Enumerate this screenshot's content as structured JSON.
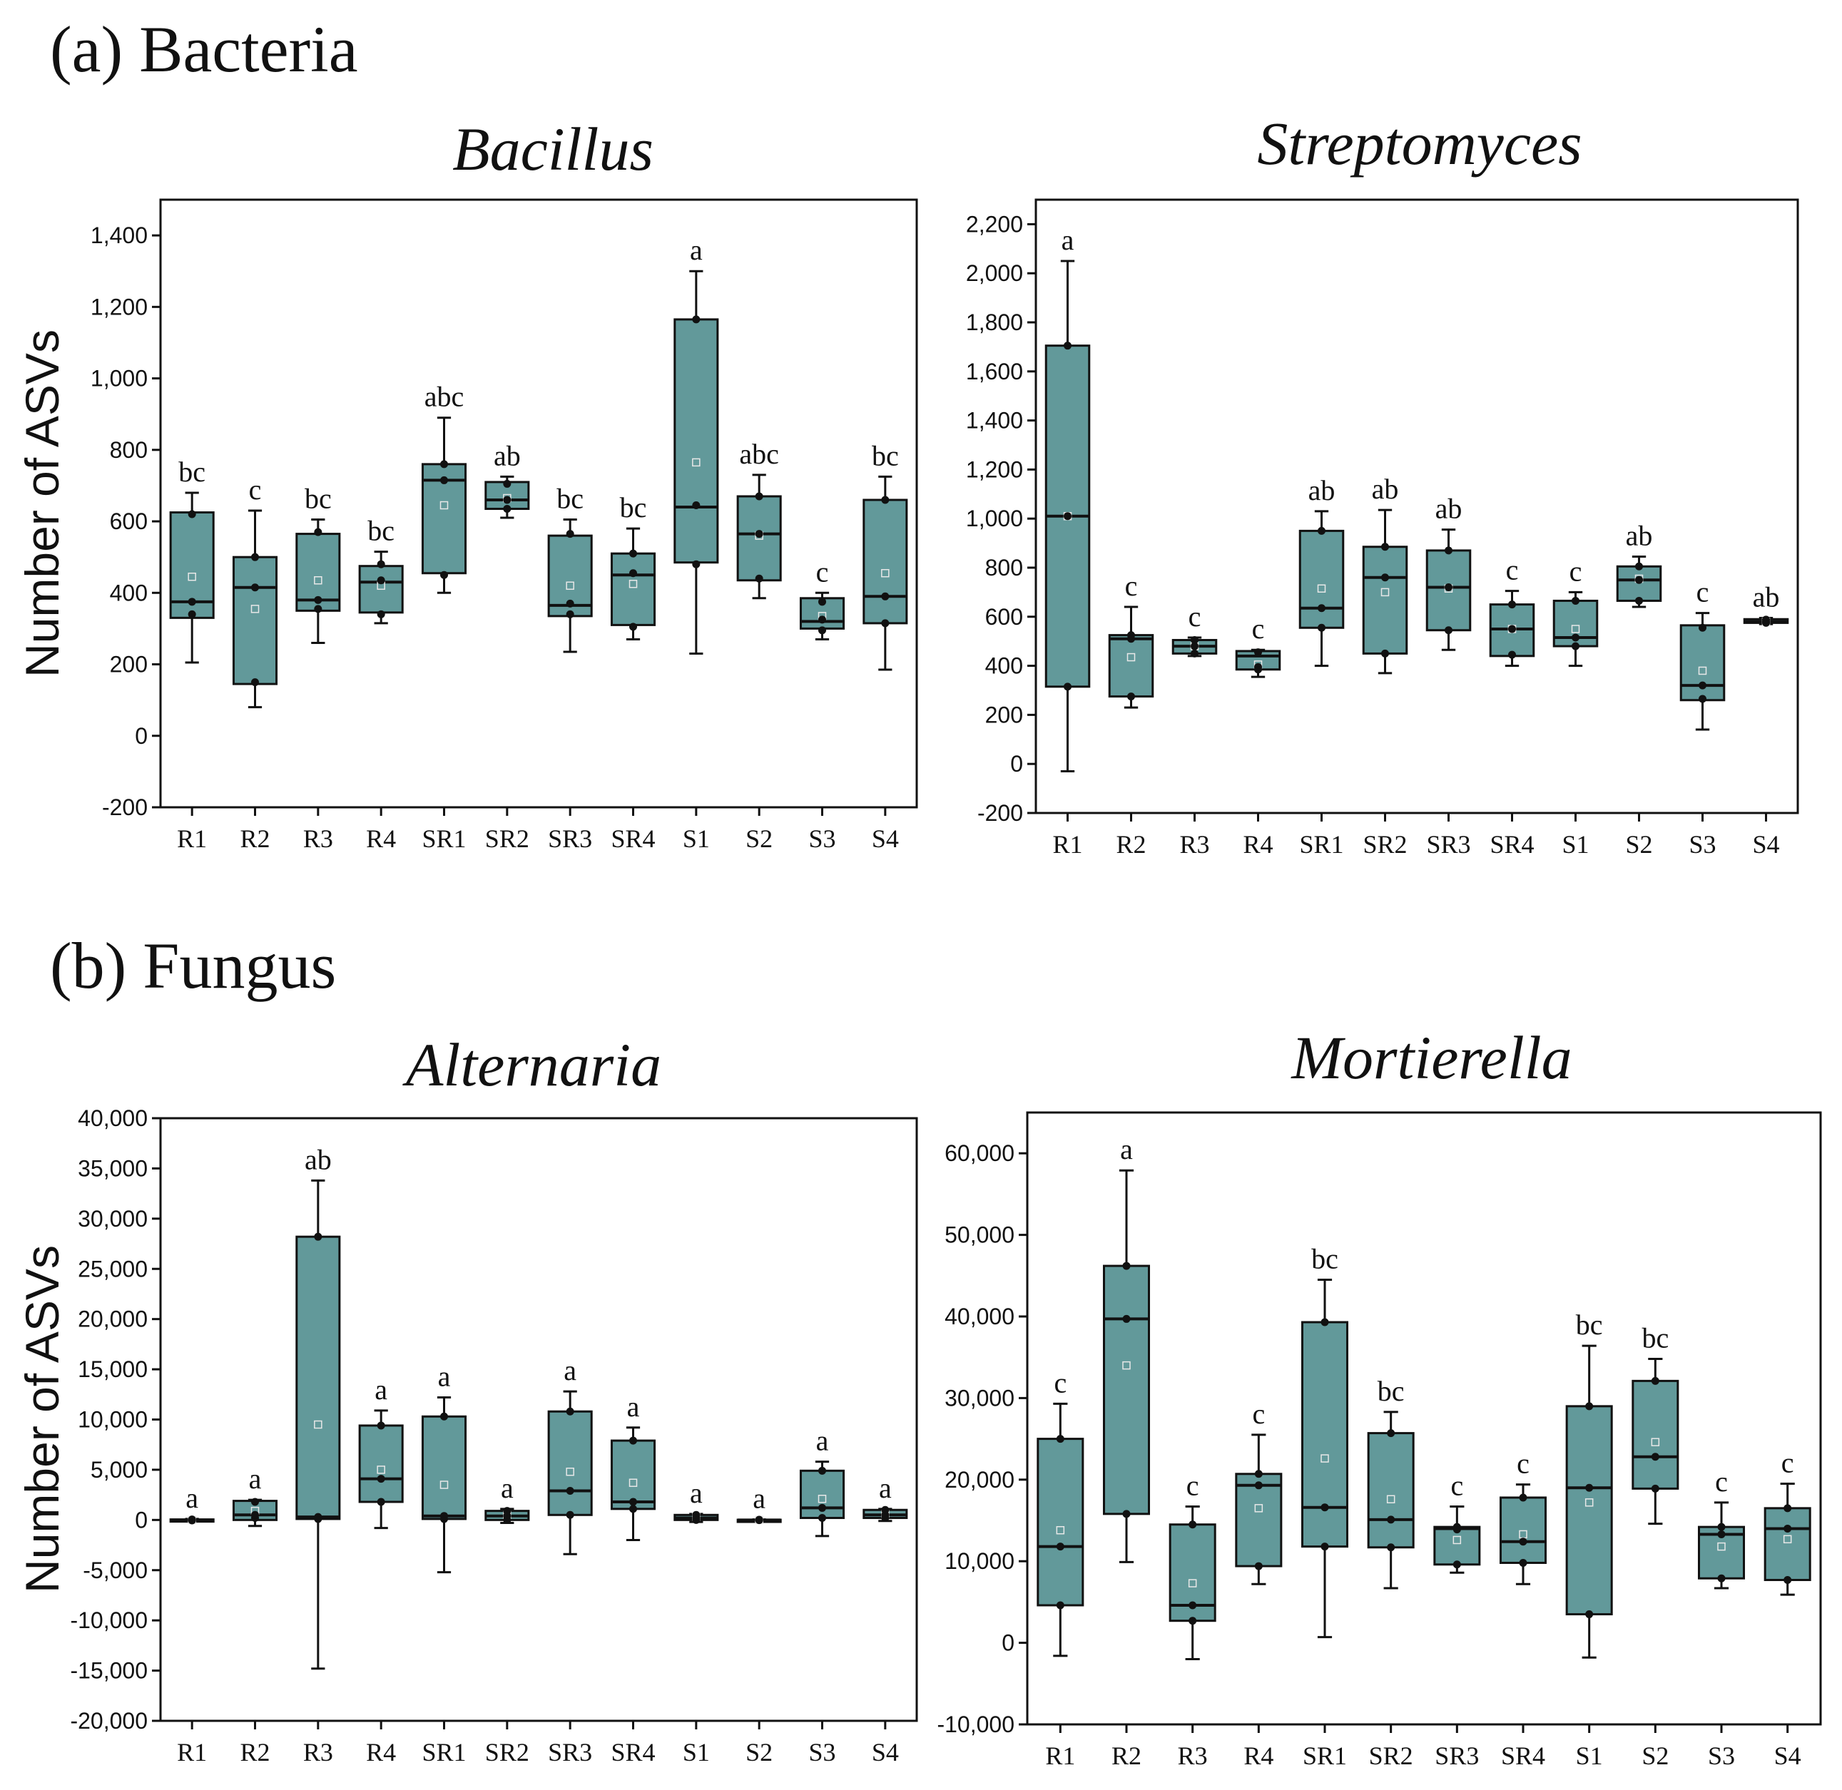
{
  "sections": [
    {
      "label": "(a) Bacteria"
    },
    {
      "label": "(b) Fungus"
    }
  ],
  "chart_data": [
    {
      "type": "box",
      "title": "Bacillus",
      "ylabel": "Number of ASVs",
      "ylim": [
        -200,
        1500
      ],
      "yticks": [
        -200,
        0,
        200,
        400,
        600,
        800,
        1000,
        1200,
        1400
      ],
      "ytick_labels": [
        "-200",
        "0",
        "200",
        "400",
        "600",
        "800",
        "1,000",
        "1,200",
        "1,400"
      ],
      "categories": [
        "R1",
        "R2",
        "R3",
        "R4",
        "SR1",
        "SR2",
        "SR3",
        "SR4",
        "S1",
        "S2",
        "S3",
        "S4"
      ],
      "boxes": [
        {
          "min": 205,
          "q1": 330,
          "median": 375,
          "q3": 625,
          "max": 680,
          "mean": 445,
          "points": [
            340,
            375,
            620
          ],
          "label": "bc"
        },
        {
          "min": 80,
          "q1": 145,
          "median": 415,
          "q3": 500,
          "max": 630,
          "mean": 355,
          "points": [
            150,
            415,
            500
          ],
          "label": "c"
        },
        {
          "min": 260,
          "q1": 350,
          "median": 380,
          "q3": 565,
          "max": 605,
          "mean": 435,
          "points": [
            355,
            380,
            570
          ],
          "label": "bc"
        },
        {
          "min": 315,
          "q1": 345,
          "median": 430,
          "q3": 475,
          "max": 515,
          "mean": 420,
          "points": [
            340,
            435,
            480
          ],
          "label": "bc"
        },
        {
          "min": 400,
          "q1": 455,
          "median": 715,
          "q3": 760,
          "max": 890,
          "mean": 645,
          "points": [
            450,
            715,
            760
          ],
          "label": "abc"
        },
        {
          "min": 610,
          "q1": 635,
          "median": 660,
          "q3": 710,
          "max": 725,
          "mean": 665,
          "points": [
            635,
            660,
            705
          ],
          "label": "ab"
        },
        {
          "min": 235,
          "q1": 335,
          "median": 365,
          "q3": 560,
          "max": 605,
          "mean": 420,
          "points": [
            340,
            370,
            565
          ],
          "label": "bc"
        },
        {
          "min": 270,
          "q1": 310,
          "median": 450,
          "q3": 510,
          "max": 580,
          "mean": 425,
          "points": [
            305,
            455,
            510
          ],
          "label": "bc"
        },
        {
          "min": 230,
          "q1": 485,
          "median": 640,
          "q3": 1165,
          "max": 1300,
          "mean": 765,
          "points": [
            480,
            645,
            1165
          ],
          "label": "a"
        },
        {
          "min": 385,
          "q1": 435,
          "median": 565,
          "q3": 670,
          "max": 730,
          "mean": 560,
          "points": [
            440,
            565,
            670
          ],
          "label": "abc"
        },
        {
          "min": 270,
          "q1": 300,
          "median": 320,
          "q3": 385,
          "max": 400,
          "mean": 335,
          "points": [
            295,
            325,
            375
          ],
          "label": "c"
        },
        {
          "min": 185,
          "q1": 315,
          "median": 390,
          "q3": 660,
          "max": 725,
          "mean": 455,
          "points": [
            315,
            390,
            660
          ],
          "label": "bc"
        }
      ]
    },
    {
      "type": "box",
      "title": "Streptomyces",
      "ylabel": "",
      "ylim": [
        -200,
        2300
      ],
      "yticks": [
        -200,
        0,
        200,
        400,
        600,
        800,
        1000,
        1200,
        1400,
        1600,
        1800,
        2000,
        2200
      ],
      "ytick_labels": [
        "-200",
        "0",
        "200",
        "400",
        "600",
        "800",
        "1,000",
        "1,200",
        "1,400",
        "1,600",
        "1,800",
        "2,000",
        "2,200"
      ],
      "categories": [
        "R1",
        "R2",
        "R3",
        "R4",
        "SR1",
        "SR2",
        "SR3",
        "SR4",
        "S1",
        "S2",
        "S3",
        "S4"
      ],
      "boxes": [
        {
          "min": -30,
          "q1": 315,
          "median": 1010,
          "q3": 1705,
          "max": 2050,
          "mean": 1010,
          "points": [
            315,
            1010,
            1705
          ],
          "label": "a"
        },
        {
          "min": 230,
          "q1": 275,
          "median": 510,
          "q3": 525,
          "max": 640,
          "mean": 435,
          "points": [
            275,
            510,
            525
          ],
          "label": "c"
        },
        {
          "min": 440,
          "q1": 450,
          "median": 480,
          "q3": 505,
          "max": 515,
          "mean": 480,
          "points": [
            450,
            480,
            505
          ],
          "label": "c"
        },
        {
          "min": 355,
          "q1": 385,
          "median": 440,
          "q3": 460,
          "max": 465,
          "mean": 405,
          "points": [
            385,
            395,
            455
          ],
          "label": "c"
        },
        {
          "min": 400,
          "q1": 555,
          "median": 635,
          "q3": 950,
          "max": 1030,
          "mean": 715,
          "points": [
            555,
            635,
            950
          ],
          "label": "ab"
        },
        {
          "min": 370,
          "q1": 450,
          "median": 760,
          "q3": 885,
          "max": 1035,
          "mean": 700,
          "points": [
            450,
            760,
            885
          ],
          "label": "ab"
        },
        {
          "min": 465,
          "q1": 545,
          "median": 720,
          "q3": 870,
          "max": 955,
          "mean": 715,
          "points": [
            545,
            720,
            870
          ],
          "label": "ab"
        },
        {
          "min": 400,
          "q1": 440,
          "median": 550,
          "q3": 650,
          "max": 705,
          "mean": 550,
          "points": [
            445,
            550,
            650
          ],
          "label": "c"
        },
        {
          "min": 400,
          "q1": 480,
          "median": 515,
          "q3": 665,
          "max": 700,
          "mean": 550,
          "points": [
            480,
            515,
            665
          ],
          "label": "c"
        },
        {
          "min": 640,
          "q1": 665,
          "median": 750,
          "q3": 805,
          "max": 845,
          "mean": 755,
          "points": [
            665,
            750,
            805
          ],
          "label": "ab"
        },
        {
          "min": 140,
          "q1": 260,
          "median": 320,
          "q3": 565,
          "max": 615,
          "mean": 380,
          "points": [
            265,
            320,
            555
          ],
          "label": "c"
        },
        {
          "min": 570,
          "q1": 575,
          "median": 580,
          "q3": 590,
          "max": 595,
          "mean": 580,
          "points": [
            575,
            580,
            588
          ],
          "label": "ab"
        }
      ]
    },
    {
      "type": "box",
      "title": "Alternaria",
      "ylabel": "Number of ASVs",
      "ylim": [
        -20000,
        40000
      ],
      "yticks": [
        -20000,
        -15000,
        -10000,
        -5000,
        0,
        5000,
        10000,
        15000,
        20000,
        25000,
        30000,
        35000,
        40000
      ],
      "ytick_labels": [
        "-20,000",
        "-15,000",
        "-10,000",
        "-5,000",
        "0",
        "5,000",
        "10,000",
        "15,000",
        "20,000",
        "25,000",
        "30,000",
        "35,000",
        "40,000"
      ],
      "categories": [
        "R1",
        "R2",
        "R3",
        "R4",
        "SR1",
        "SR2",
        "SR3",
        "SR4",
        "S1",
        "S2",
        "S3",
        "S4"
      ],
      "boxes": [
        {
          "min": -100,
          "q1": -50,
          "median": 0,
          "q3": 50,
          "max": 100,
          "mean": 0,
          "points": [
            -50,
            0,
            50
          ],
          "label": "a"
        },
        {
          "min": -600,
          "q1": 0,
          "median": 500,
          "q3": 1900,
          "max": 2000,
          "mean": 900,
          "points": [
            200,
            500,
            1800
          ],
          "label": "a"
        },
        {
          "min": -14800,
          "q1": 100,
          "median": 300,
          "q3": 28200,
          "max": 33800,
          "mean": 9500,
          "points": [
            100,
            300,
            28200
          ],
          "label": "ab"
        },
        {
          "min": -800,
          "q1": 1800,
          "median": 4100,
          "q3": 9400,
          "max": 10900,
          "mean": 5000,
          "points": [
            1800,
            4100,
            9400
          ],
          "label": "a"
        },
        {
          "min": -5200,
          "q1": 100,
          "median": 400,
          "q3": 10300,
          "max": 12200,
          "mean": 3500,
          "points": [
            100,
            400,
            10300
          ],
          "label": "a"
        },
        {
          "min": -300,
          "q1": 0,
          "median": 400,
          "q3": 900,
          "max": 1100,
          "mean": 500,
          "points": [
            0,
            400,
            900
          ],
          "label": "a"
        },
        {
          "min": -3400,
          "q1": 500,
          "median": 2900,
          "q3": 10800,
          "max": 12800,
          "mean": 4800,
          "points": [
            500,
            2900,
            10800
          ],
          "label": "a"
        },
        {
          "min": -2000,
          "q1": 1100,
          "median": 1800,
          "q3": 7900,
          "max": 9200,
          "mean": 3700,
          "points": [
            1100,
            1800,
            7900
          ],
          "label": "a"
        },
        {
          "min": -200,
          "q1": 0,
          "median": 200,
          "q3": 500,
          "max": 600,
          "mean": 300,
          "points": [
            0,
            200,
            500
          ],
          "label": "a"
        },
        {
          "min": -50,
          "q1": -20,
          "median": 0,
          "q3": 20,
          "max": 50,
          "mean": 0,
          "points": [
            -20,
            0,
            20
          ],
          "label": "a"
        },
        {
          "min": -1600,
          "q1": 200,
          "median": 1200,
          "q3": 4900,
          "max": 5800,
          "mean": 2100,
          "points": [
            200,
            1200,
            4900
          ],
          "label": "a"
        },
        {
          "min": -100,
          "q1": 200,
          "median": 500,
          "q3": 1000,
          "max": 1100,
          "mean": 600,
          "points": [
            200,
            500,
            1000
          ],
          "label": "a"
        }
      ]
    },
    {
      "type": "box",
      "title": "Mortierella",
      "ylabel": "",
      "ylim": [
        -10000,
        65000
      ],
      "yticks": [
        -10000,
        0,
        10000,
        20000,
        30000,
        40000,
        50000,
        60000
      ],
      "ytick_labels": [
        "-10,000",
        "0",
        "10,000",
        "20,000",
        "30,000",
        "40,000",
        "50,000",
        "60,000"
      ],
      "categories": [
        "R1",
        "R2",
        "R3",
        "R4",
        "SR1",
        "SR2",
        "SR3",
        "SR4",
        "S1",
        "S2",
        "S3",
        "S4"
      ],
      "boxes": [
        {
          "min": -1600,
          "q1": 4600,
          "median": 11800,
          "q3": 25000,
          "max": 29300,
          "mean": 13800,
          "points": [
            4600,
            11800,
            25000
          ],
          "label": "c"
        },
        {
          "min": 9900,
          "q1": 15800,
          "median": 39700,
          "q3": 46200,
          "max": 57900,
          "mean": 34000,
          "points": [
            15800,
            39700,
            46200
          ],
          "label": "a"
        },
        {
          "min": -2000,
          "q1": 2700,
          "median": 4600,
          "q3": 14500,
          "max": 16700,
          "mean": 7300,
          "points": [
            2700,
            4600,
            14500
          ],
          "label": "c"
        },
        {
          "min": 7200,
          "q1": 9400,
          "median": 19300,
          "q3": 20700,
          "max": 25500,
          "mean": 16500,
          "points": [
            9400,
            19300,
            20700
          ],
          "label": "c"
        },
        {
          "min": 700,
          "q1": 11800,
          "median": 16600,
          "q3": 39300,
          "max": 44500,
          "mean": 22600,
          "points": [
            11800,
            16600,
            39300
          ],
          "label": "bc"
        },
        {
          "min": 6700,
          "q1": 11700,
          "median": 15100,
          "q3": 25700,
          "max": 28300,
          "mean": 17600,
          "points": [
            11700,
            15100,
            25700
          ],
          "label": "bc"
        },
        {
          "min": 8600,
          "q1": 9600,
          "median": 14000,
          "q3": 14200,
          "max": 16700,
          "mean": 12600,
          "points": [
            9600,
            13900,
            14200
          ],
          "label": "c"
        },
        {
          "min": 7200,
          "q1": 9800,
          "median": 12400,
          "q3": 17800,
          "max": 19400,
          "mean": 13300,
          "points": [
            9800,
            12400,
            17800
          ],
          "label": "c"
        },
        {
          "min": -1800,
          "q1": 3500,
          "median": 19000,
          "q3": 29000,
          "max": 36400,
          "mean": 17200,
          "points": [
            3500,
            19000,
            29000
          ],
          "label": "bc"
        },
        {
          "min": 14600,
          "q1": 18900,
          "median": 22800,
          "q3": 32100,
          "max": 34800,
          "mean": 24600,
          "points": [
            18900,
            22800,
            32100
          ],
          "label": "bc"
        },
        {
          "min": 6700,
          "q1": 7900,
          "median": 13300,
          "q3": 14200,
          "max": 17200,
          "mean": 11800,
          "points": [
            7900,
            13300,
            14200
          ],
          "label": "c"
        },
        {
          "min": 5900,
          "q1": 7700,
          "median": 14000,
          "q3": 16500,
          "max": 19500,
          "mean": 12700,
          "points": [
            7700,
            14000,
            16500
          ],
          "label": "c"
        }
      ]
    }
  ]
}
